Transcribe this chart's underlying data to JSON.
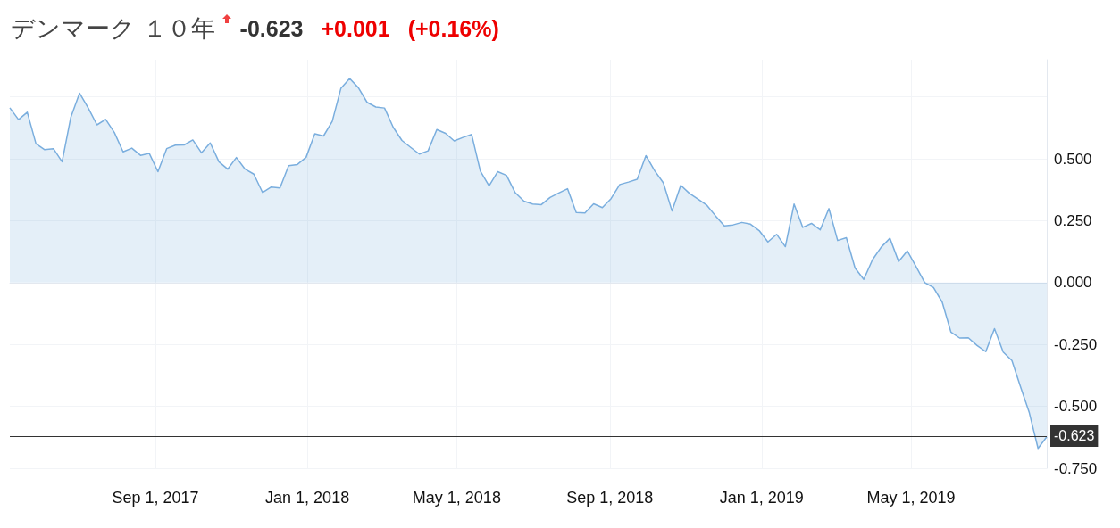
{
  "chart_data": {
    "type": "area",
    "title": "デンマーク １０年",
    "annotations": [
      "-0.623",
      "+0.001",
      "(+0.16%)"
    ],
    "x": [
      "2017-05-07",
      "2017-05-14",
      "2017-05-21",
      "2017-05-28",
      "2017-06-04",
      "2017-06-11",
      "2017-06-18",
      "2017-06-25",
      "2017-07-02",
      "2017-07-09",
      "2017-07-16",
      "2017-07-23",
      "2017-07-30",
      "2017-08-06",
      "2017-08-13",
      "2017-08-20",
      "2017-08-27",
      "2017-09-03",
      "2017-09-10",
      "2017-09-17",
      "2017-09-24",
      "2017-10-01",
      "2017-10-08",
      "2017-10-15",
      "2017-10-22",
      "2017-10-29",
      "2017-11-05",
      "2017-11-12",
      "2017-11-19",
      "2017-11-26",
      "2017-12-03",
      "2017-12-10",
      "2017-12-17",
      "2017-12-24",
      "2017-12-31",
      "2018-01-07",
      "2018-01-14",
      "2018-01-21",
      "2018-01-28",
      "2018-02-04",
      "2018-02-11",
      "2018-02-18",
      "2018-02-25",
      "2018-03-04",
      "2018-03-11",
      "2018-03-18",
      "2018-03-25",
      "2018-04-01",
      "2018-04-08",
      "2018-04-15",
      "2018-04-22",
      "2018-04-29",
      "2018-05-06",
      "2018-05-13",
      "2018-05-20",
      "2018-05-27",
      "2018-06-03",
      "2018-06-10",
      "2018-06-17",
      "2018-06-24",
      "2018-07-01",
      "2018-07-08",
      "2018-07-15",
      "2018-07-22",
      "2018-07-29",
      "2018-08-05",
      "2018-08-12",
      "2018-08-19",
      "2018-08-26",
      "2018-09-02",
      "2018-09-09",
      "2018-09-16",
      "2018-09-23",
      "2018-09-30",
      "2018-10-07",
      "2018-10-14",
      "2018-10-21",
      "2018-10-28",
      "2018-11-04",
      "2018-11-11",
      "2018-11-18",
      "2018-11-25",
      "2018-12-02",
      "2018-12-09",
      "2018-12-16",
      "2018-12-23",
      "2018-12-30",
      "2019-01-06",
      "2019-01-13",
      "2019-01-20",
      "2019-01-27",
      "2019-02-03",
      "2019-02-10",
      "2019-02-17",
      "2019-02-24",
      "2019-03-03",
      "2019-03-10",
      "2019-03-17",
      "2019-03-24",
      "2019-03-31",
      "2019-04-07",
      "2019-04-14",
      "2019-04-21",
      "2019-04-28",
      "2019-05-05",
      "2019-05-12",
      "2019-05-19",
      "2019-05-26",
      "2019-06-02",
      "2019-06-09",
      "2019-06-16",
      "2019-06-23",
      "2019-06-30",
      "2019-07-07",
      "2019-07-14",
      "2019-07-21",
      "2019-07-28",
      "2019-08-04",
      "2019-08-11",
      "2019-08-18"
    ],
    "series": [
      {
        "color": "#7aaede",
        "values": [
          0.706,
          0.658,
          0.688,
          0.561,
          0.537,
          0.541,
          0.488,
          0.668,
          0.765,
          0.705,
          0.637,
          0.659,
          0.606,
          0.528,
          0.543,
          0.514,
          0.522,
          0.448,
          0.541,
          0.555,
          0.556,
          0.576,
          0.524,
          0.564,
          0.488,
          0.458,
          0.505,
          0.458,
          0.438,
          0.364,
          0.386,
          0.382,
          0.472,
          0.477,
          0.506,
          0.601,
          0.592,
          0.651,
          0.785,
          0.824,
          0.787,
          0.728,
          0.709,
          0.705,
          0.627,
          0.574,
          0.546,
          0.519,
          0.532,
          0.618,
          0.603,
          0.572,
          0.586,
          0.598,
          0.45,
          0.391,
          0.448,
          0.433,
          0.363,
          0.329,
          0.317,
          0.315,
          0.344,
          0.362,
          0.379,
          0.283,
          0.281,
          0.318,
          0.303,
          0.339,
          0.396,
          0.406,
          0.417,
          0.513,
          0.452,
          0.403,
          0.289,
          0.393,
          0.36,
          0.337,
          0.312,
          0.269,
          0.229,
          0.233,
          0.243,
          0.236,
          0.21,
          0.164,
          0.195,
          0.145,
          0.317,
          0.223,
          0.239,
          0.213,
          0.299,
          0.17,
          0.181,
          0.059,
          0.013,
          0.092,
          0.143,
          0.179,
          0.085,
          0.128,
          0.065,
          0.0,
          -0.02,
          -0.079,
          -0.2,
          -0.224,
          -0.223,
          -0.254,
          -0.279,
          -0.186,
          -0.281,
          -0.315,
          -0.422,
          -0.526,
          -0.67,
          -0.623
        ]
      }
    ],
    "xlim": [
      "2017-05-07",
      "2019-08-18"
    ],
    "xticks": [
      {
        "value": "2017-09-01",
        "label": "Sep 1, 2017"
      },
      {
        "value": "2018-01-01",
        "label": "Jan 1, 2018"
      },
      {
        "value": "2018-05-01",
        "label": "May 1, 2018"
      },
      {
        "value": "2018-09-01",
        "label": "Sep 1, 2018"
      },
      {
        "value": "2019-01-01",
        "label": "Jan 1, 2019"
      },
      {
        "value": "2019-05-01",
        "label": "May 1, 2019"
      }
    ],
    "ylim": [
      -0.75,
      0.9
    ],
    "yticks": [
      {
        "value": -0.75,
        "label": "-0.750"
      },
      {
        "value": -0.5,
        "label": "-0.500"
      },
      {
        "value": -0.25,
        "label": "-0.250"
      },
      {
        "value": 0,
        "label": "0.000"
      },
      {
        "value": 0.25,
        "label": "0.250"
      },
      {
        "value": 0.5,
        "label": "0.500"
      },
      {
        "value": 0.75,
        "label": null
      }
    ],
    "ref_lines": [
      {
        "axis": "y",
        "value": -0.623,
        "label": "-0.623",
        "color": "#333333"
      }
    ],
    "grid": true,
    "marker": "none",
    "line_style": "solid"
  }
}
